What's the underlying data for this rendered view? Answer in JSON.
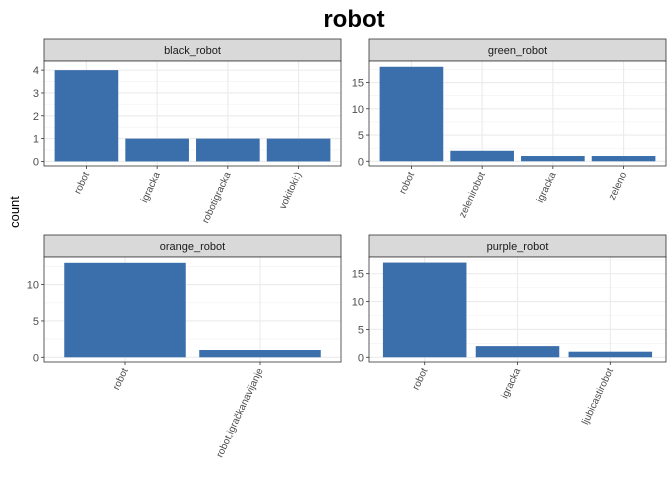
{
  "chart_data": {
    "type": "bar",
    "title": "robot",
    "ylabel": "count",
    "xlabel": "",
    "bar_color": "#3a6fab",
    "strip_color": "#d9d9d9",
    "grid": true,
    "facets": [
      {
        "name": "black_robot",
        "categories": [
          "robot",
          "igracka",
          "robotigracka",
          "vokitoki:)"
        ],
        "values": [
          4,
          1,
          1,
          1
        ],
        "ylim": [
          -0.2,
          4.4
        ],
        "yticks": [
          0,
          1,
          2,
          3,
          4
        ]
      },
      {
        "name": "green_robot",
        "categories": [
          "robot",
          "zelenirobot",
          "igracka",
          "zeleno"
        ],
        "values": [
          18,
          2,
          1,
          1
        ],
        "ylim": [
          -0.9,
          19.1
        ],
        "yticks": [
          0,
          5,
          10,
          15
        ]
      },
      {
        "name": "orange_robot",
        "categories": [
          "robot",
          "robot,igračkanavijanje"
        ],
        "values": [
          13,
          1
        ],
        "ylim": [
          -0.65,
          13.8
        ],
        "yticks": [
          0,
          5,
          10
        ]
      },
      {
        "name": "purple_robot",
        "categories": [
          "robot",
          "igracka",
          "ljubicastirobot"
        ],
        "values": [
          17,
          2,
          1
        ],
        "ylim": [
          -0.85,
          18.0
        ],
        "yticks": [
          0,
          5,
          10,
          15
        ]
      }
    ]
  }
}
